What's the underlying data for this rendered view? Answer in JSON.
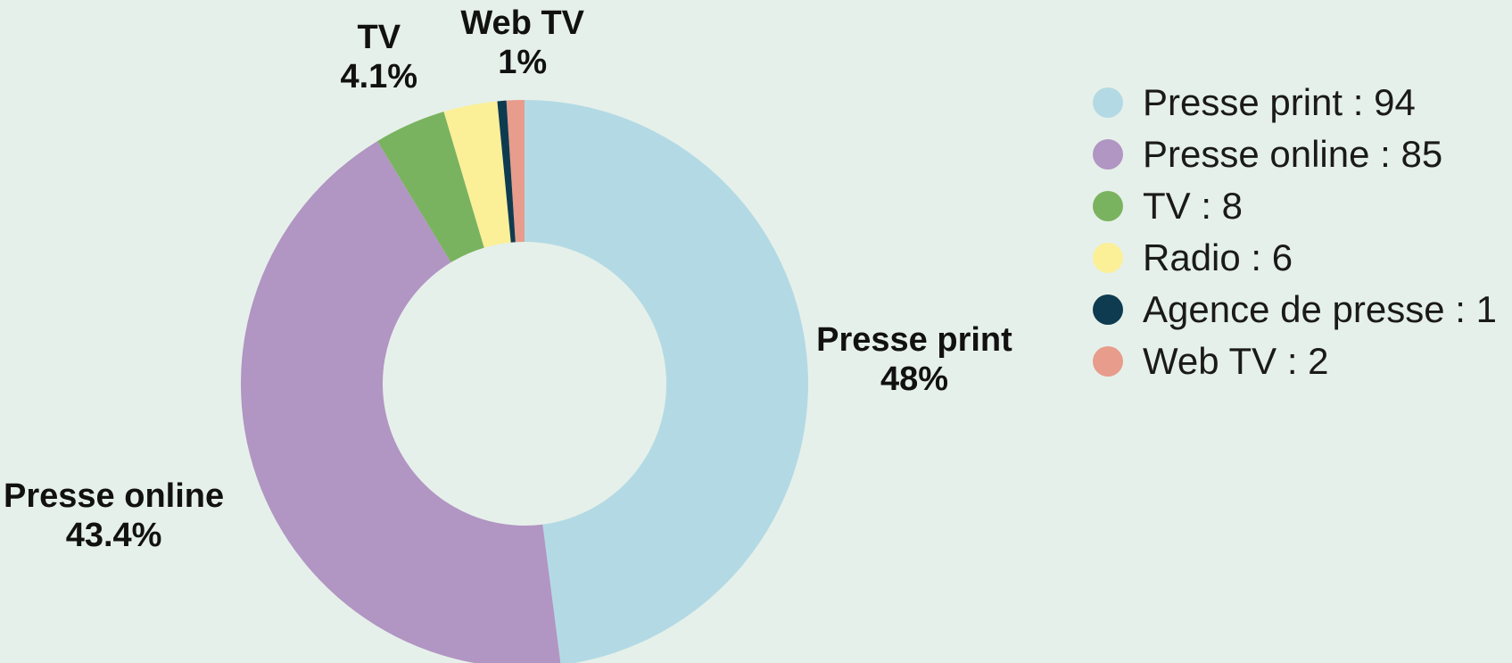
{
  "chart_data": {
    "type": "pie",
    "donut": true,
    "slices": [
      {
        "name": "Presse print",
        "value": 94,
        "percent_label": "48%",
        "show_label": true,
        "color": "#b3dae4"
      },
      {
        "name": "Presse online",
        "value": 85,
        "percent_label": "43.4%",
        "show_label": true,
        "color": "#b195c3"
      },
      {
        "name": "TV",
        "value": 8,
        "percent_label": "4.1%",
        "show_label": true,
        "color": "#7ab35f"
      },
      {
        "name": "Radio",
        "value": 6,
        "percent_label": "",
        "show_label": false,
        "color": "#fbef98"
      },
      {
        "name": "Agence de presse",
        "value": 1,
        "percent_label": "",
        "show_label": false,
        "color": "#0f3b50"
      },
      {
        "name": "Web TV",
        "value": 2,
        "percent_label": "1%",
        "show_label": true,
        "color": "#e89c8b"
      }
    ],
    "legend": {
      "position": "top-right",
      "items": [
        "Presse print : 94",
        "Presse online : 85",
        "TV : 8",
        "Radio : 6",
        "Agence de presse : 1",
        "Web TV : 2"
      ]
    }
  },
  "colors": {
    "background": "#e6f0ea"
  }
}
